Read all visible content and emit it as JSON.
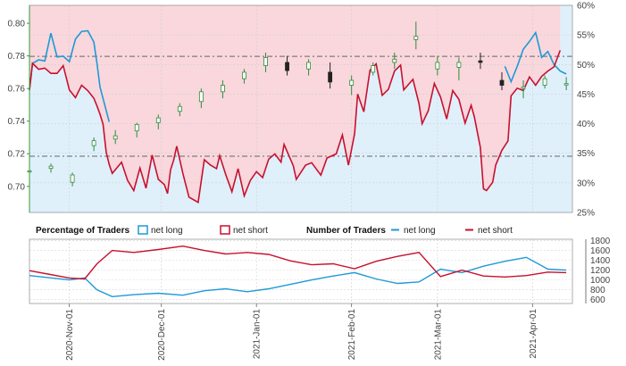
{
  "chart_data": [
    {
      "type": "candlestick-with-sentiment",
      "price_axis": {
        "ticks": [
          "0.70",
          "0.72",
          "0.74",
          "0.76",
          "0.78",
          "0.80"
        ],
        "ylim": [
          0.684,
          0.811
        ]
      },
      "percent_axis": {
        "ticks": [
          "25%",
          "30%",
          "35%",
          "40%",
          "45%",
          "50%",
          "55%",
          "60%"
        ],
        "ylim": [
          25,
          60
        ]
      },
      "reference_lines": [
        0.7797,
        0.7185
      ],
      "shading": {
        "net_long_color": "#dff0fb",
        "net_short_color": "#f9d7dc"
      },
      "x": {
        "range": [
          "2020-10-19",
          "2021-04-14"
        ]
      },
      "net_long_pct": [
        [
          "2020-10-19",
          45.7
        ],
        [
          "2020-10-20",
          50.2
        ],
        [
          "2020-10-22",
          50.8
        ],
        [
          "2020-10-24",
          50.6
        ],
        [
          "2020-10-26",
          55.3
        ],
        [
          "2020-10-28",
          51.3
        ],
        [
          "2020-10-30",
          51.4
        ],
        [
          "2020-11-01",
          50.5
        ],
        [
          "2020-11-03",
          54.3
        ],
        [
          "2020-11-05",
          55.6
        ],
        [
          "2020-11-07",
          55.7
        ],
        [
          "2020-11-09",
          53.8
        ],
        [
          "2020-11-10",
          50.2
        ],
        [
          "2020-11-11",
          46.2
        ],
        [
          "2020-11-14",
          40.3
        ]
      ],
      "net_short_pct": [
        [
          "2020-10-19",
          45.7
        ],
        [
          "2020-10-20",
          50.2
        ],
        [
          "2020-10-22",
          49.2
        ],
        [
          "2020-10-24",
          49.4
        ],
        [
          "2020-10-26",
          48.5
        ],
        [
          "2020-10-28",
          48.5
        ],
        [
          "2020-10-30",
          49.8
        ],
        [
          "2020-11-01",
          45.7
        ],
        [
          "2020-11-03",
          44.4
        ],
        [
          "2020-11-05",
          46.5
        ],
        [
          "2020-11-07",
          45.6
        ],
        [
          "2020-11-09",
          44.3
        ],
        [
          "2020-11-10",
          43.0
        ],
        [
          "2020-11-11",
          41.6
        ],
        [
          "2020-11-12",
          39.9
        ],
        [
          "2020-11-13",
          35.2
        ],
        [
          "2020-11-14",
          33.1
        ],
        [
          "2020-11-15",
          31.6
        ],
        [
          "2020-11-18",
          33.5
        ],
        [
          "2020-11-20",
          30.4
        ],
        [
          "2020-11-22",
          28.7
        ],
        [
          "2020-11-24",
          32.5
        ],
        [
          "2020-11-26",
          29.1
        ],
        [
          "2020-11-28",
          34.7
        ],
        [
          "2020-11-30",
          30.6
        ],
        [
          "2020-12-02",
          29.7
        ],
        [
          "2020-12-03",
          28.2
        ],
        [
          "2020-12-04",
          32.2
        ],
        [
          "2020-12-05",
          33.8
        ],
        [
          "2020-12-06",
          36.2
        ],
        [
          "2020-12-08",
          31.6
        ],
        [
          "2020-12-10",
          27.6
        ],
        [
          "2020-12-13",
          26.7
        ],
        [
          "2020-12-15",
          33.9
        ],
        [
          "2020-12-17",
          33.0
        ],
        [
          "2020-12-19",
          32.4
        ],
        [
          "2020-12-20",
          34.6
        ],
        [
          "2020-12-22",
          31.4
        ],
        [
          "2020-12-24",
          28.5
        ],
        [
          "2020-12-26",
          32.4
        ],
        [
          "2020-12-28",
          27.8
        ],
        [
          "2020-12-30",
          30.4
        ],
        [
          "2021-01-01",
          31.9
        ],
        [
          "2021-01-03",
          30.9
        ],
        [
          "2021-01-05",
          34.0
        ],
        [
          "2021-01-07",
          34.9
        ],
        [
          "2021-01-09",
          33.5
        ],
        [
          "2021-01-10",
          36.5
        ],
        [
          "2021-01-13",
          32.9
        ],
        [
          "2021-01-14",
          30.6
        ],
        [
          "2021-01-17",
          33.0
        ],
        [
          "2021-01-19",
          33.4
        ],
        [
          "2021-01-22",
          31.3
        ],
        [
          "2021-01-24",
          34.2
        ],
        [
          "2021-01-27",
          34.9
        ],
        [
          "2021-01-29",
          38.1
        ],
        [
          "2021-01-31",
          33.0
        ],
        [
          "2021-02-02",
          38.3
        ],
        [
          "2021-02-03",
          45.0
        ],
        [
          "2021-02-05",
          42.0
        ],
        [
          "2021-02-07",
          49.0
        ],
        [
          "2021-02-09",
          50.1
        ],
        [
          "2021-02-11",
          44.8
        ],
        [
          "2021-02-13",
          45.8
        ],
        [
          "2021-02-15",
          48.9
        ],
        [
          "2021-02-17",
          49.9
        ],
        [
          "2021-02-18",
          45.7
        ],
        [
          "2021-02-21",
          47.5
        ],
        [
          "2021-02-23",
          43.4
        ],
        [
          "2021-02-24",
          40.0
        ],
        [
          "2021-02-26",
          42.2
        ],
        [
          "2021-02-28",
          46.8
        ],
        [
          "2021-03-02",
          44.5
        ],
        [
          "2021-03-04",
          40.8
        ],
        [
          "2021-03-06",
          45.6
        ],
        [
          "2021-03-08",
          44.1
        ],
        [
          "2021-03-10",
          40.1
        ],
        [
          "2021-03-12",
          43.1
        ],
        [
          "2021-03-13",
          41.2
        ],
        [
          "2021-03-15",
          36.0
        ],
        [
          "2021-03-16",
          29.0
        ],
        [
          "2021-03-17",
          28.7
        ],
        [
          "2021-03-19",
          30.1
        ],
        [
          "2021-03-20",
          33.0
        ],
        [
          "2021-03-22",
          35.5
        ],
        [
          "2021-03-24",
          37.1
        ],
        [
          "2021-03-25",
          44.7
        ],
        [
          "2021-03-27",
          46.0
        ],
        [
          "2021-03-29",
          45.6
        ],
        [
          "2021-03-31",
          47.9
        ],
        [
          "2021-04-02",
          46.5
        ],
        [
          "2021-04-04",
          48.0
        ],
        [
          "2021-04-06",
          48.9
        ],
        [
          "2021-04-08",
          49.6
        ],
        [
          "2021-04-10",
          52.4
        ]
      ],
      "net_long_pct_late": [
        [
          "2021-03-23",
          49.7
        ],
        [
          "2021-03-25",
          47.1
        ],
        [
          "2021-03-27",
          49.7
        ],
        [
          "2021-03-29",
          52.6
        ],
        [
          "2021-03-31",
          53.9
        ],
        [
          "2021-04-02",
          55.4
        ],
        [
          "2021-04-04",
          51.2
        ],
        [
          "2021-04-06",
          52.2
        ],
        [
          "2021-04-08",
          50.0
        ],
        [
          "2021-04-10",
          48.9
        ],
        [
          "2021-04-12",
          48.4
        ]
      ],
      "price_ohlc_sample": [
        [
          "2020-10-19",
          0.7088,
          0.7104,
          0.7076,
          0.7096
        ],
        [
          "2020-10-26",
          0.711,
          0.714,
          0.7084,
          0.7124
        ],
        [
          "2020-11-02",
          0.7025,
          0.7085,
          0.7,
          0.707
        ],
        [
          "2020-11-09",
          0.725,
          0.73,
          0.7216,
          0.728
        ],
        [
          "2020-11-16",
          0.729,
          0.7345,
          0.726,
          0.731
        ],
        [
          "2020-11-23",
          0.734,
          0.739,
          0.73,
          0.738
        ],
        [
          "2020-11-30",
          0.739,
          0.744,
          0.735,
          0.742
        ],
        [
          "2020-12-07",
          0.746,
          0.751,
          0.743,
          0.749
        ],
        [
          "2020-12-14",
          0.752,
          0.76,
          0.748,
          0.758
        ],
        [
          "2020-12-21",
          0.758,
          0.765,
          0.754,
          0.762
        ],
        [
          "2020-12-28",
          0.766,
          0.772,
          0.763,
          0.77
        ],
        [
          "2021-01-04",
          0.774,
          0.782,
          0.77,
          0.779
        ],
        [
          "2021-01-11",
          0.776,
          0.78,
          0.768,
          0.771
        ],
        [
          "2021-01-18",
          0.772,
          0.778,
          0.768,
          0.776
        ],
        [
          "2021-01-25",
          0.77,
          0.776,
          0.76,
          0.764
        ],
        [
          "2021-02-01",
          0.762,
          0.768,
          0.756,
          0.765
        ],
        [
          "2021-02-08",
          0.77,
          0.776,
          0.768,
          0.774
        ],
        [
          "2021-02-15",
          0.776,
          0.782,
          0.772,
          0.778
        ],
        [
          "2021-02-22",
          0.79,
          0.801,
          0.784,
          0.792
        ],
        [
          "2021-03-01",
          0.772,
          0.78,
          0.768,
          0.776
        ],
        [
          "2021-03-08",
          0.773,
          0.779,
          0.765,
          0.776
        ],
        [
          "2021-03-15",
          0.777,
          0.782,
          0.772,
          0.776
        ],
        [
          "2021-03-22",
          0.765,
          0.77,
          0.759,
          0.762
        ],
        [
          "2021-03-29",
          0.76,
          0.765,
          0.754,
          0.761
        ],
        [
          "2021-04-05",
          0.762,
          0.768,
          0.76,
          0.766
        ],
        [
          "2021-04-12",
          0.763,
          0.767,
          0.759,
          0.763
        ]
      ]
    },
    {
      "type": "line",
      "legend_percentage": {
        "title": "Percentage of Traders",
        "long": "net long",
        "short": "net short"
      },
      "legend_number": {
        "title": "Number of Traders",
        "long": "net long",
        "short": "net short"
      },
      "y_ticks": [
        "600",
        "800",
        "1000",
        "1200",
        "1400",
        "1600",
        "1800"
      ],
      "ylim": [
        520,
        1830
      ],
      "series": [
        {
          "name": "net long",
          "color": "#1e9ad6",
          "values": [
            [
              "2020-10-19",
              1090
            ],
            [
              "2020-10-25",
              1050
            ],
            [
              "2020-11-01",
              1000
            ],
            [
              "2020-11-06",
              1040
            ],
            [
              "2020-11-10",
              800
            ],
            [
              "2020-11-15",
              660
            ],
            [
              "2020-11-22",
              700
            ],
            [
              "2020-11-30",
              730
            ],
            [
              "2020-12-08",
              690
            ],
            [
              "2020-12-15",
              780
            ],
            [
              "2020-12-22",
              820
            ],
            [
              "2020-12-29",
              760
            ],
            [
              "2021-01-05",
              820
            ],
            [
              "2021-01-12",
              910
            ],
            [
              "2021-01-19",
              1000
            ],
            [
              "2021-01-26",
              1080
            ],
            [
              "2021-02-02",
              1150
            ],
            [
              "2021-02-09",
              1020
            ],
            [
              "2021-02-16",
              930
            ],
            [
              "2021-02-23",
              960
            ],
            [
              "2021-03-02",
              1220
            ],
            [
              "2021-03-09",
              1150
            ],
            [
              "2021-03-16",
              1280
            ],
            [
              "2021-03-23",
              1380
            ],
            [
              "2021-03-30",
              1460
            ],
            [
              "2021-04-06",
              1220
            ],
            [
              "2021-04-12",
              1200
            ]
          ]
        },
        {
          "name": "net short",
          "color": "#c8102e",
          "values": [
            [
              "2020-10-19",
              1190
            ],
            [
              "2020-10-25",
              1120
            ],
            [
              "2020-11-01",
              1040
            ],
            [
              "2020-11-06",
              1020
            ],
            [
              "2020-11-10",
              1330
            ],
            [
              "2020-11-15",
              1600
            ],
            [
              "2020-11-22",
              1560
            ],
            [
              "2020-11-30",
              1620
            ],
            [
              "2020-12-08",
              1690
            ],
            [
              "2020-12-15",
              1600
            ],
            [
              "2020-12-22",
              1530
            ],
            [
              "2020-12-29",
              1560
            ],
            [
              "2021-01-05",
              1520
            ],
            [
              "2021-01-12",
              1390
            ],
            [
              "2021-01-19",
              1310
            ],
            [
              "2021-01-26",
              1330
            ],
            [
              "2021-02-02",
              1230
            ],
            [
              "2021-02-09",
              1380
            ],
            [
              "2021-02-16",
              1480
            ],
            [
              "2021-02-23",
              1560
            ],
            [
              "2021-03-02",
              1070
            ],
            [
              "2021-03-09",
              1200
            ],
            [
              "2021-03-16",
              1080
            ],
            [
              "2021-03-23",
              1060
            ],
            [
              "2021-03-30",
              1090
            ],
            [
              "2021-04-06",
              1160
            ],
            [
              "2021-04-12",
              1150
            ]
          ]
        }
      ]
    }
  ],
  "x_ticks": [
    {
      "date": "2020-11-01",
      "label": "2020-Nov-01"
    },
    {
      "date": "2020-12-01",
      "label": "2020-Dec-01"
    },
    {
      "date": "2021-01-01",
      "label": "2021-Jan-01"
    },
    {
      "date": "2021-02-01",
      "label": "2021-Feb-01"
    },
    {
      "date": "2021-03-01",
      "label": "2021-Mar-01"
    },
    {
      "date": "2021-04-01",
      "label": "2021-Apr-01"
    }
  ],
  "colors": {
    "long": "#1e9ad6",
    "short": "#c8102e",
    "candle_up": "#2e8b3a",
    "candle_down": "#222222"
  }
}
